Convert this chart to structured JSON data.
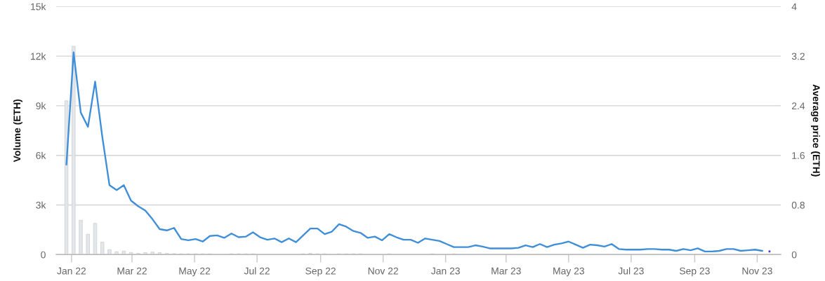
{
  "chart_data": {
    "type": "bar",
    "ylabel": "Volume (ETH)",
    "y2label": "Average price (ETH)",
    "x": [
      "2021-12-27",
      "2022-01-03",
      "2022-01-10",
      "2022-01-17",
      "2022-01-24",
      "2022-01-31",
      "2022-02-07",
      "2022-02-14",
      "2022-02-21",
      "2022-02-28",
      "2022-03-07",
      "2022-03-14",
      "2022-03-21",
      "2022-03-28",
      "2022-04-04",
      "2022-04-11",
      "2022-04-18",
      "2022-04-25",
      "2022-05-02",
      "2022-05-09",
      "2022-05-16",
      "2022-05-23",
      "2022-05-30",
      "2022-06-06",
      "2022-06-13",
      "2022-06-20",
      "2022-06-27",
      "2022-07-04",
      "2022-07-11",
      "2022-07-18",
      "2022-07-25",
      "2022-08-01",
      "2022-08-08",
      "2022-08-15",
      "2022-08-22",
      "2022-08-29",
      "2022-09-05",
      "2022-09-12",
      "2022-09-19",
      "2022-09-26",
      "2022-10-03",
      "2022-10-10",
      "2022-10-17",
      "2022-10-24",
      "2022-10-31",
      "2022-11-07",
      "2022-11-14",
      "2022-11-21",
      "2022-11-28",
      "2022-12-05",
      "2022-12-12",
      "2022-12-19",
      "2022-12-26",
      "2023-01-02",
      "2023-01-09",
      "2023-01-16",
      "2023-01-23",
      "2023-01-30",
      "2023-02-06",
      "2023-02-13",
      "2023-02-20",
      "2023-02-27",
      "2023-03-06",
      "2023-03-13",
      "2023-03-20",
      "2023-03-27",
      "2023-04-03",
      "2023-04-10",
      "2023-04-17",
      "2023-04-24",
      "2023-05-01",
      "2023-05-08",
      "2023-05-15",
      "2023-05-22",
      "2023-05-29",
      "2023-06-05",
      "2023-06-12",
      "2023-06-19",
      "2023-06-26",
      "2023-07-03",
      "2023-07-10",
      "2023-07-17",
      "2023-07-24",
      "2023-07-31",
      "2023-08-07",
      "2023-08-14",
      "2023-08-21",
      "2023-08-28",
      "2023-09-04",
      "2023-09-11",
      "2023-09-18",
      "2023-09-25",
      "2023-10-02",
      "2023-10-09",
      "2023-10-16",
      "2023-10-23",
      "2023-10-30",
      "2023-11-06"
    ],
    "xlim": [
      "2021-12-17",
      "2023-11-24"
    ],
    "xticks": [
      {
        "value": "2022-01-01",
        "label": "Jan 22"
      },
      {
        "value": "2022-03-01",
        "label": "Mar 22"
      },
      {
        "value": "2022-05-01",
        "label": "May 22"
      },
      {
        "value": "2022-07-01",
        "label": "Jul 22"
      },
      {
        "value": "2022-09-01",
        "label": "Sep 22"
      },
      {
        "value": "2022-11-01",
        "label": "Nov 22"
      },
      {
        "value": "2023-01-01",
        "label": "Jan 23"
      },
      {
        "value": "2023-03-01",
        "label": "Mar 23"
      },
      {
        "value": "2023-05-01",
        "label": "May 23"
      },
      {
        "value": "2023-07-01",
        "label": "Jul 23"
      },
      {
        "value": "2023-09-01",
        "label": "Sep 23"
      },
      {
        "value": "2023-11-01",
        "label": "Nov 23"
      }
    ],
    "ylim": [
      0,
      15000
    ],
    "yticks": [
      0,
      {
        "value": 3000,
        "label": "3k"
      },
      {
        "value": 6000,
        "label": "6k"
      },
      {
        "value": 9000,
        "label": "9k"
      },
      {
        "value": 12000,
        "label": "12k"
      },
      {
        "value": 15000,
        "label": "15k"
      }
    ],
    "y2lim": [
      0,
      4
    ],
    "y2ticks": [
      0,
      0.8,
      1.6,
      2.4,
      3.2,
      4
    ],
    "grid": "y",
    "series": [
      {
        "color": "#e4e6e9",
        "values": [
          9300,
          12600,
          2080,
          1230,
          1890,
          750,
          300,
          170,
          210,
          130,
          80,
          120,
          150,
          120,
          80,
          60,
          50,
          50,
          50,
          50,
          50,
          null,
          null,
          50,
          50,
          50,
          50,
          null,
          null,
          null,
          null,
          null,
          null,
          50,
          80,
          50,
          50,
          null,
          50,
          50,
          50,
          50,
          null,
          null,
          null,
          50,
          null,
          null,
          null,
          null,
          null,
          50,
          null,
          null,
          50,
          null,
          null,
          null,
          null,
          null,
          null,
          null,
          null,
          null,
          null,
          null,
          null,
          null,
          null,
          null,
          null,
          null,
          null,
          null,
          null,
          null,
          null,
          null,
          null,
          null,
          null,
          null,
          null,
          null,
          null,
          null,
          null,
          null,
          null,
          null,
          null,
          null,
          null,
          null,
          null,
          null,
          null,
          null
        ]
      },
      {
        "type": "line",
        "axis": "y2",
        "color": "#3f8ed8",
        "values": [
          1.45,
          3.26,
          2.29,
          2.06,
          2.79,
          1.9,
          1.12,
          1.04,
          1.12,
          0.87,
          0.78,
          0.71,
          0.57,
          0.41,
          0.39,
          0.43,
          0.25,
          0.23,
          0.25,
          0.21,
          0.3,
          0.31,
          0.27,
          0.34,
          0.28,
          0.29,
          0.36,
          0.28,
          0.24,
          0.26,
          0.2,
          0.26,
          0.2,
          0.31,
          0.42,
          0.42,
          0.33,
          0.37,
          0.49,
          0.45,
          0.38,
          0.35,
          0.27,
          0.29,
          0.23,
          0.33,
          0.28,
          0.24,
          0.24,
          0.19,
          0.26,
          0.24,
          0.22,
          0.17,
          0.12,
          0.12,
          0.12,
          0.15,
          0.13,
          0.1,
          0.1,
          0.1,
          0.1,
          0.11,
          0.15,
          0.12,
          0.17,
          0.12,
          0.16,
          0.18,
          0.21,
          0.16,
          0.11,
          0.16,
          0.15,
          0.13,
          0.17,
          0.09,
          0.08,
          0.08,
          0.08,
          0.09,
          0.09,
          0.08,
          0.08,
          0.06,
          0.09,
          0.07,
          0.1,
          0.05,
          0.05,
          0.06,
          0.09,
          0.09,
          0.06,
          0.07,
          0.08,
          0.06
        ]
      },
      {
        "type": "scatter",
        "axis": "y2",
        "color": "#5a3cd2",
        "marker": "circle",
        "x": [
          "2023-11-13"
        ],
        "values": [
          0.05
        ]
      }
    ]
  }
}
